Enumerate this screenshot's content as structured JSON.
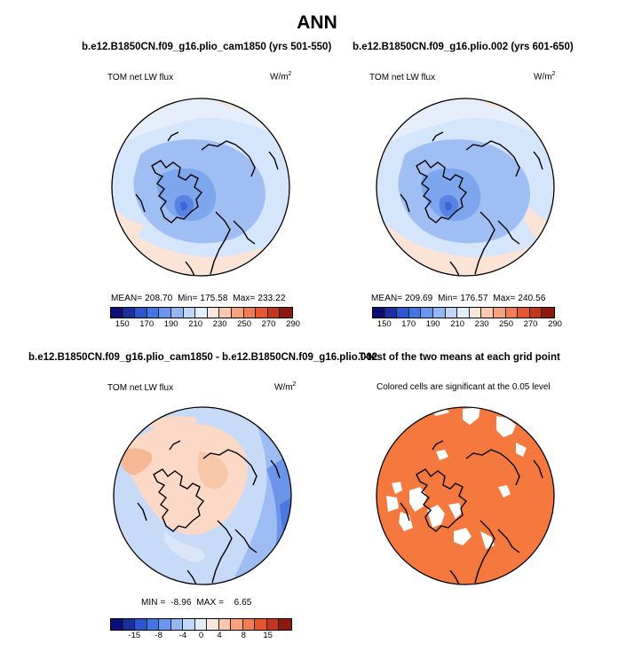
{
  "page": {
    "title": "ANN"
  },
  "panels": {
    "p1": {
      "case": "b.e12.B1850CN.f09_g16.plio_cam1850 (yrs 501-550)",
      "left_label": "TOM net LW flux",
      "units_base": "W/m",
      "units_exp": "2",
      "stats": {
        "mean_label": "MEAN=",
        "mean": "208.70",
        "min_label": "Min=",
        "min": "175.58",
        "max_label": "Max=",
        "max": "233.22"
      }
    },
    "p2": {
      "case": "b.e12.B1850CN.f09_g16.plio.002 (yrs 601-650)",
      "left_label": "TOM net LW flux",
      "units_base": "W/m",
      "units_exp": "2",
      "stats": {
        "mean_label": "MEAN=",
        "mean": "209.69",
        "min_label": "Min=",
        "min": "176.57",
        "max_label": "Max=",
        "max": "240.56"
      }
    },
    "p3": {
      "case": "b.e12.B1850CN.f09_g16.plio_cam1850 - b.e12.B1850CN.f09_g16.plio.002",
      "left_label": "TOM net LW flux",
      "units_base": "W/m",
      "units_exp": "2",
      "stats": {
        "min_label": "MIN =",
        "min": "-8.96",
        "max_label": "MAX =",
        "max": "6.65"
      }
    },
    "p4": {
      "case": "T-test of the two means at each grid point",
      "note": "Colored cells are significant at the 0.05 level"
    }
  },
  "colorbars": {
    "abs": {
      "colors": [
        "#0b0e73",
        "#1b2ea2",
        "#2c55cf",
        "#4176e5",
        "#6a96ef",
        "#93b6f5",
        "#c0d7fa",
        "#e1ecfc",
        "#fce7dc",
        "#f9c8ad",
        "#f5a27d",
        "#f07e52",
        "#e4572f",
        "#c2361b",
        "#8c190e"
      ],
      "labels": [
        "150",
        "170",
        "190",
        "210",
        "230",
        "250",
        "270",
        "290"
      ]
    },
    "diff": {
      "colors": [
        "#0b0e73",
        "#1b2ea2",
        "#2c55cf",
        "#4176e5",
        "#6a96ef",
        "#93b6f5",
        "#c0d7fa",
        "#e1ecfc",
        "#fce7dc",
        "#f9c8ad",
        "#f5a27d",
        "#f07e52",
        "#e4572f",
        "#c2361b",
        "#8c190e"
      ],
      "labels": [
        "-15",
        "-8",
        "-4",
        "0",
        "4",
        "8",
        "15"
      ]
    }
  },
  "chart_data": [
    {
      "type": "heatmap",
      "projection": "polar-stereographic-north",
      "title": "b.e12.B1850CN.f09_g16.plio_cam1850 (yrs 501-550)",
      "variable": "TOM net LW flux",
      "units": "W/m2",
      "season": "ANN",
      "mean": 208.7,
      "min": 175.58,
      "max": 233.22,
      "levels": [
        150,
        160,
        170,
        180,
        190,
        200,
        210,
        220,
        230,
        240,
        250,
        260,
        270,
        280,
        290,
        300
      ]
    },
    {
      "type": "heatmap",
      "projection": "polar-stereographic-north",
      "title": "b.e12.B1850CN.f09_g16.plio.002 (yrs 601-650)",
      "variable": "TOM net LW flux",
      "units": "W/m2",
      "season": "ANN",
      "mean": 209.69,
      "min": 176.57,
      "max": 240.56,
      "levels": [
        150,
        160,
        170,
        180,
        190,
        200,
        210,
        220,
        230,
        240,
        250,
        260,
        270,
        280,
        290,
        300
      ]
    },
    {
      "type": "heatmap",
      "projection": "polar-stereographic-north",
      "title": "difference (plio_cam1850 - plio.002)",
      "variable": "TOM net LW flux",
      "units": "W/m2",
      "season": "ANN",
      "min": -8.96,
      "max": 6.65,
      "levels": [
        -15,
        -8,
        -4,
        0,
        4,
        8,
        15
      ]
    },
    {
      "type": "heatmap",
      "projection": "polar-stereographic-north",
      "title": "T-test of the two means at each grid point",
      "note": "Colored cells are significant at the 0.05 level",
      "significance_level": 0.05
    }
  ]
}
